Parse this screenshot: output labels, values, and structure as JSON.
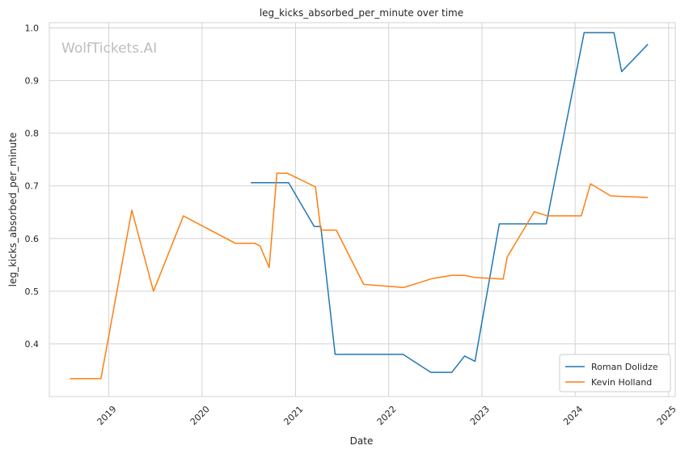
{
  "watermark": "WolfTickets.AI",
  "chart_data": {
    "type": "line",
    "title": "leg_kicks_absorbed_per_minute over time",
    "xlabel": "Date",
    "ylabel": "leg_kicks_absorbed_per_minute",
    "xlim": [
      "2018-05-13",
      "2025-01-27"
    ],
    "ylim": [
      0.3,
      1.01
    ],
    "x_ticks": [
      "2019",
      "2020",
      "2021",
      "2022",
      "2023",
      "2024",
      "2025"
    ],
    "y_ticks": [
      "0.4",
      "0.5",
      "0.6",
      "0.7",
      "0.8",
      "0.9",
      "1.0"
    ],
    "grid": true,
    "legend_position": "bottom-right",
    "series": [
      {
        "name": "Roman Dolidze",
        "color": "#1f77b4",
        "points": [
          [
            "2020-07-10",
            0.706
          ],
          [
            "2020-12-05",
            0.706
          ],
          [
            "2021-03-15",
            0.623
          ],
          [
            "2021-04-10",
            0.623
          ],
          [
            "2021-06-05",
            0.38
          ],
          [
            "2022-02-26",
            0.38
          ],
          [
            "2022-06-15",
            0.346
          ],
          [
            "2022-09-05",
            0.346
          ],
          [
            "2022-10-25",
            0.377
          ],
          [
            "2022-12-05",
            0.367
          ],
          [
            "2023-03-10",
            0.628
          ],
          [
            "2023-09-10",
            0.628
          ],
          [
            "2024-02-05",
            0.991
          ],
          [
            "2024-06-01",
            0.991
          ],
          [
            "2024-07-01",
            0.917
          ],
          [
            "2024-10-12",
            0.969
          ]
        ]
      },
      {
        "name": "Kevin Holland",
        "color": "#ff7f0e",
        "points": [
          [
            "2018-08-01",
            0.334
          ],
          [
            "2018-12-01",
            0.334
          ],
          [
            "2019-04-01",
            0.654
          ],
          [
            "2019-06-25",
            0.5
          ],
          [
            "2019-10-20",
            0.643
          ],
          [
            "2020-05-10",
            0.591
          ],
          [
            "2020-07-25",
            0.591
          ],
          [
            "2020-08-15",
            0.586
          ],
          [
            "2020-09-20",
            0.545
          ],
          [
            "2020-10-20",
            0.724
          ],
          [
            "2020-11-30",
            0.724
          ],
          [
            "2021-03-20",
            0.698
          ],
          [
            "2021-04-10",
            0.616
          ],
          [
            "2021-06-10",
            0.616
          ],
          [
            "2021-09-25",
            0.513
          ],
          [
            "2022-02-28",
            0.507
          ],
          [
            "2022-06-20",
            0.524
          ],
          [
            "2022-09-05",
            0.53
          ],
          [
            "2022-10-25",
            0.53
          ],
          [
            "2022-12-05",
            0.526
          ],
          [
            "2023-03-25",
            0.523
          ],
          [
            "2023-04-10",
            0.565
          ],
          [
            "2023-07-25",
            0.651
          ],
          [
            "2023-09-15",
            0.643
          ],
          [
            "2024-01-25",
            0.643
          ],
          [
            "2024-03-01",
            0.704
          ],
          [
            "2024-05-20",
            0.681
          ],
          [
            "2024-10-12",
            0.678
          ]
        ]
      }
    ]
  }
}
